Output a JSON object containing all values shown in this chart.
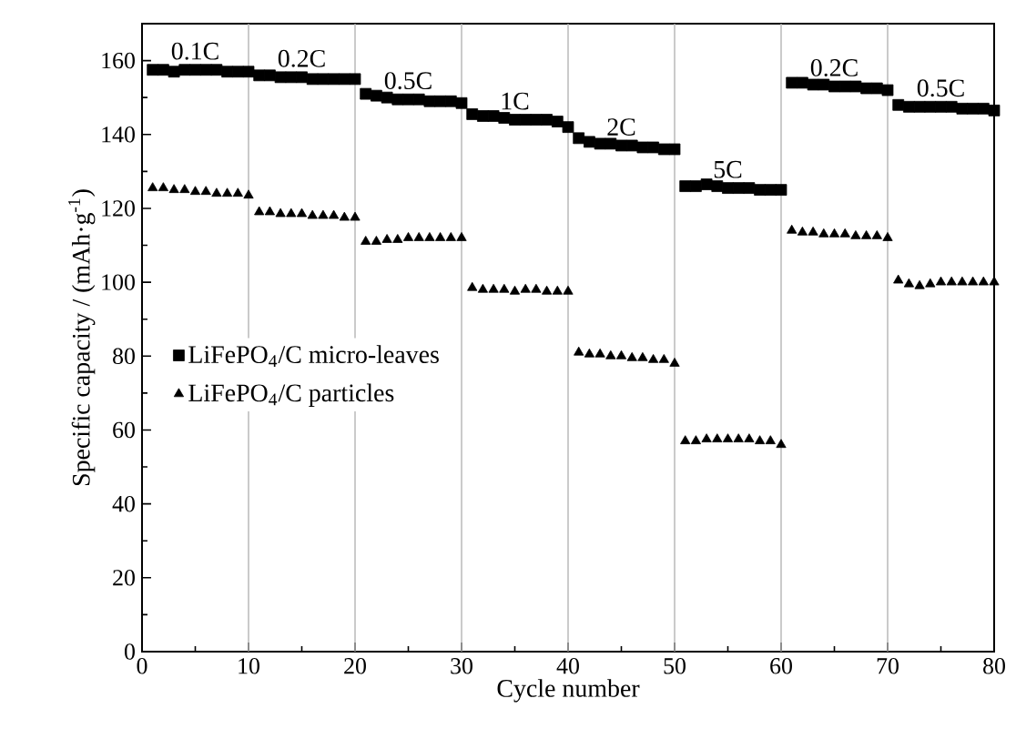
{
  "chart_data": {
    "type": "scatter",
    "xlabel": "Cycle number",
    "ylabel": "Specific capacity / (mAh·g$^{-1}$)",
    "xlim": [
      0,
      80
    ],
    "ylim": [
      0,
      170
    ],
    "xticks": [
      0,
      10,
      20,
      30,
      40,
      50,
      60,
      70,
      80
    ],
    "yticks": [
      0,
      20,
      40,
      60,
      80,
      100,
      120,
      140,
      160
    ],
    "grid": false,
    "legend": "left",
    "x": [
      1,
      2,
      3,
      4,
      5,
      6,
      7,
      8,
      9,
      10,
      11,
      12,
      13,
      14,
      15,
      16,
      17,
      18,
      19,
      20,
      21,
      22,
      23,
      24,
      25,
      26,
      27,
      28,
      29,
      30,
      31,
      32,
      33,
      34,
      35,
      36,
      37,
      38,
      39,
      40,
      41,
      42,
      43,
      44,
      45,
      46,
      47,
      48,
      49,
      50,
      51,
      52,
      53,
      54,
      55,
      56,
      57,
      58,
      59,
      60,
      61,
      62,
      63,
      64,
      65,
      66,
      67,
      68,
      69,
      70,
      71,
      72,
      73,
      74,
      75,
      76,
      77,
      78,
      79,
      80
    ],
    "series": [
      {
        "name": "LiFePO$_{4}$/C micro-leaves",
        "color": "#000000",
        "marker": "square",
        "values": [
          157.5,
          157.5,
          157,
          157.5,
          157.5,
          157.5,
          157.5,
          157,
          157,
          157,
          156,
          156,
          155.5,
          155.5,
          155.5,
          155,
          155,
          155,
          155,
          155,
          151,
          150.5,
          150,
          149.5,
          149.5,
          149.5,
          149,
          149,
          149,
          148.5,
          145.5,
          145,
          145,
          144.5,
          144,
          144,
          144,
          144,
          143.5,
          142,
          139,
          138,
          137.5,
          137.5,
          137,
          137,
          136.5,
          136.5,
          136,
          136,
          126,
          126,
          126.5,
          126,
          125.5,
          125.5,
          125.5,
          125,
          125,
          125,
          154,
          154,
          153.5,
          153.5,
          153,
          153,
          153,
          152.5,
          152.5,
          152,
          148,
          147.5,
          147.5,
          147.5,
          147.5,
          147.5,
          147,
          147,
          147,
          146.5
        ]
      },
      {
        "name": "LiFePO$_{4}$/C particles",
        "color": "#000000",
        "marker": "triangle",
        "values": [
          125.5,
          125.5,
          125,
          125,
          124.5,
          124.5,
          124,
          124,
          124,
          123.5,
          119,
          119,
          118.5,
          118.5,
          118.5,
          118,
          118,
          118,
          117.5,
          117.5,
          111,
          111,
          111.5,
          111.5,
          112,
          112,
          112,
          112,
          112,
          112,
          98.5,
          98,
          98,
          98,
          97.5,
          98,
          98,
          97.5,
          97.5,
          97.5,
          81,
          80.5,
          80.5,
          80,
          80,
          79.5,
          79.5,
          79,
          79,
          78,
          57,
          57,
          57.5,
          57.5,
          57.5,
          57.5,
          57.5,
          57,
          57,
          56,
          114,
          113.5,
          113.5,
          113,
          113,
          113,
          112.5,
          112.5,
          112.5,
          112,
          100.5,
          99.5,
          99,
          99.5,
          100,
          100,
          100,
          100,
          100,
          100
        ]
      }
    ],
    "ref_lines": [
      {
        "axis": "x",
        "value": 10,
        "color": "#b4b4b4"
      },
      {
        "axis": "x",
        "value": 20,
        "color": "#b4b4b4"
      },
      {
        "axis": "x",
        "value": 30,
        "color": "#b4b4b4"
      },
      {
        "axis": "x",
        "value": 40,
        "color": "#b4b4b4"
      },
      {
        "axis": "x",
        "value": 50,
        "color": "#b4b4b4"
      },
      {
        "axis": "x",
        "value": 60,
        "color": "#b4b4b4"
      },
      {
        "axis": "x",
        "value": 70,
        "color": "#b4b4b4"
      }
    ],
    "annotations": [
      {
        "text": "0.1C",
        "x": 5,
        "y": 157.5
      },
      {
        "text": "0.2C",
        "x": 15,
        "y": 155.5
      },
      {
        "text": "0.5C",
        "x": 25,
        "y": 149.5
      },
      {
        "text": "1C",
        "x": 35,
        "y": 144
      },
      {
        "text": "2C",
        "x": 45,
        "y": 137
      },
      {
        "text": "5C",
        "x": 55,
        "y": 125.5
      },
      {
        "text": "0.2C",
        "x": 65,
        "y": 153
      },
      {
        "text": "0.5C",
        "x": 75,
        "y": 147.5
      }
    ]
  }
}
